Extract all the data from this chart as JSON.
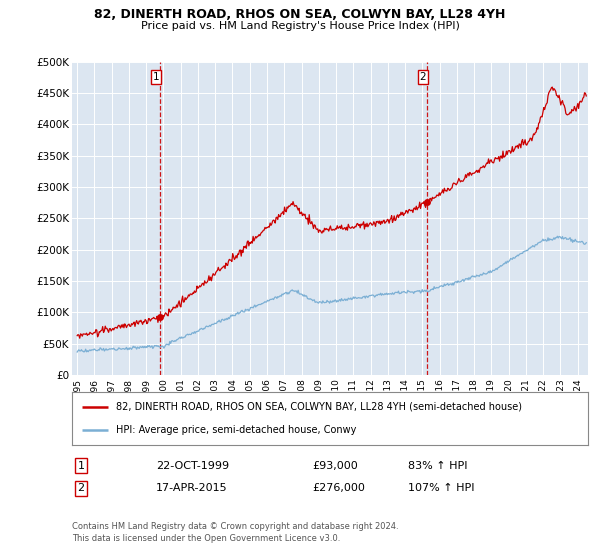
{
  "title": "82, DINERTH ROAD, RHOS ON SEA, COLWYN BAY, LL28 4YH",
  "subtitle": "Price paid vs. HM Land Registry's House Price Index (HPI)",
  "plot_bg_color": "#dce6f1",
  "ylim": [
    0,
    500000
  ],
  "yticks": [
    0,
    50000,
    100000,
    150000,
    200000,
    250000,
    300000,
    350000,
    400000,
    450000,
    500000
  ],
  "xlim_start": 1994.7,
  "xlim_end": 2024.6,
  "sale1_x": 1999.81,
  "sale1_y": 93000,
  "sale1_label": "1",
  "sale1_date": "22-OCT-1999",
  "sale1_price": "£93,000",
  "sale1_hpi": "83% ↑ HPI",
  "sale2_x": 2015.29,
  "sale2_y": 276000,
  "sale2_label": "2",
  "sale2_date": "17-APR-2015",
  "sale2_price": "£276,000",
  "sale2_hpi": "107% ↑ HPI",
  "legend_line1": "82, DINERTH ROAD, RHOS ON SEA, COLWYN BAY, LL28 4YH (semi-detached house)",
  "legend_line2": "HPI: Average price, semi-detached house, Conwy",
  "footer1": "Contains HM Land Registry data © Crown copyright and database right 2024.",
  "footer2": "This data is licensed under the Open Government Licence v3.0.",
  "red_line_color": "#cc0000",
  "blue_line_color": "#7bafd4",
  "marker_color": "#cc0000",
  "vline_color": "#cc0000"
}
